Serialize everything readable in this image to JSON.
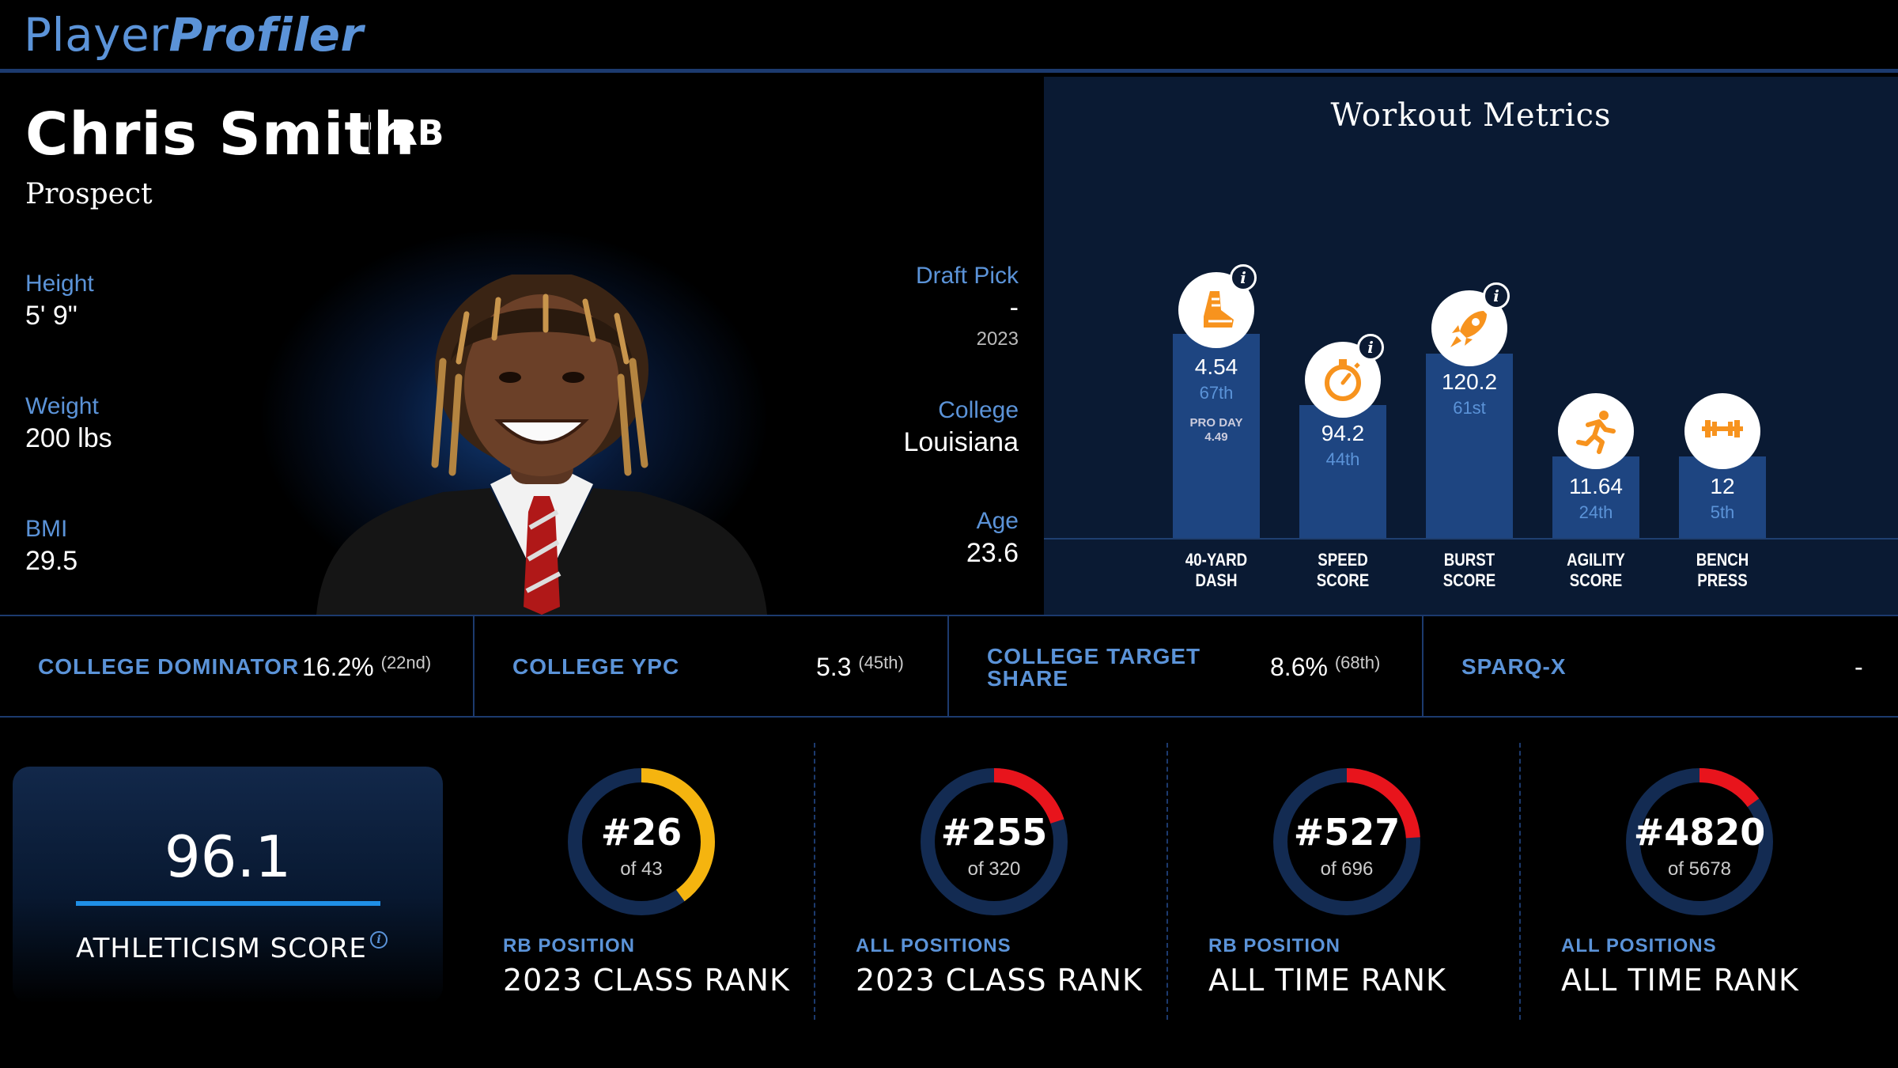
{
  "brand": {
    "part1": "Player",
    "part2": "Profiler"
  },
  "player": {
    "name": "Chris Smith",
    "position": "RB",
    "status": "Prospect",
    "height_label": "Height",
    "height": "5' 9\"",
    "weight_label": "Weight",
    "weight": "200 lbs",
    "bmi_label": "BMI",
    "bmi": "29.5",
    "draft_label": "Draft Pick",
    "draft_pick": "-",
    "draft_year": "2023",
    "college_label": "College",
    "college": "Louisiana",
    "age_label": "Age",
    "age": "23.6"
  },
  "workout": {
    "title": "Workout Metrics",
    "metrics": [
      {
        "label1": "40-YARD",
        "label2": "DASH",
        "value": "4.54",
        "pct": "67th",
        "pct_num": 67,
        "pro_day_label": "PRO DAY",
        "pro_day": "4.49",
        "icon": "running-shoe-icon",
        "info": "i"
      },
      {
        "label1": "SPEED",
        "label2": "SCORE",
        "value": "94.2",
        "pct": "44th",
        "pct_num": 44,
        "icon": "stopwatch-icon",
        "info": "i"
      },
      {
        "label1": "BURST",
        "label2": "SCORE",
        "value": "120.2",
        "pct": "61st",
        "pct_num": 61,
        "icon": "rocket-icon",
        "info": "i"
      },
      {
        "label1": "AGILITY",
        "label2": "SCORE",
        "value": "11.64",
        "pct": "24th",
        "pct_num": 24,
        "icon": "runner-icon"
      },
      {
        "label1": "BENCH",
        "label2": "PRESS",
        "value": "12",
        "pct": "5th",
        "pct_num": 5,
        "icon": "barbell-icon"
      }
    ]
  },
  "strip": [
    {
      "label": "COLLEGE DOMINATOR",
      "value": "16.2%",
      "rank": "(22nd)"
    },
    {
      "label": "COLLEGE YPC",
      "value": "5.3",
      "rank": "(45th)"
    },
    {
      "label_line1": "COLLEGE TARGET",
      "label_line2": "SHARE",
      "value": "8.6%",
      "rank": "(68th)"
    },
    {
      "label": "SPARQ-X",
      "value": "-"
    }
  ],
  "athleticism": {
    "score": "96.1",
    "label": "ATHLETICISM SCORE",
    "info": "i"
  },
  "ranks": [
    {
      "rank": "#26",
      "of": "of 43",
      "category": "RB POSITION",
      "title": "2023 CLASS RANK",
      "fraction": 0.4,
      "color": "#f5b40f"
    },
    {
      "rank": "#255",
      "of": "of 320",
      "category": "ALL POSITIONS",
      "title": "2023 CLASS RANK",
      "fraction": 0.2,
      "color": "#e8141c"
    },
    {
      "rank": "#527",
      "of": "of 696",
      "category": "RB POSITION",
      "title": "ALL TIME RANK",
      "fraction": 0.24,
      "color": "#e8141c"
    },
    {
      "rank": "#4820",
      "of": "of 5678",
      "category": "ALL POSITIONS",
      "title": "ALL TIME RANK",
      "fraction": 0.15,
      "color": "#e8141c"
    }
  ],
  "colors": {
    "accent": "#5b93d8",
    "bar": "#1e4581",
    "panel": "#0a1a33",
    "gold": "#f5b40f",
    "red": "#e8141c",
    "icon_orange": "#f7931e"
  }
}
